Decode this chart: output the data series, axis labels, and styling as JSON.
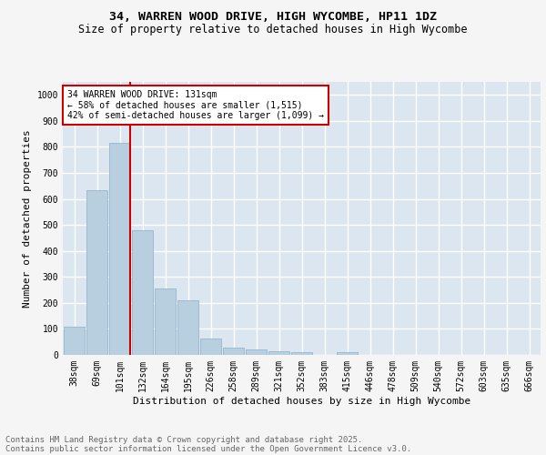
{
  "title": "34, WARREN WOOD DRIVE, HIGH WYCOMBE, HP11 1DZ",
  "subtitle": "Size of property relative to detached houses in High Wycombe",
  "xlabel": "Distribution of detached houses by size in High Wycombe",
  "ylabel": "Number of detached properties",
  "background_color": "#dce6f0",
  "bar_color": "#b8cfe0",
  "bar_edge_color": "#8aafc8",
  "grid_color": "#ffffff",
  "fig_background": "#f5f5f5",
  "categories": [
    "38sqm",
    "69sqm",
    "101sqm",
    "132sqm",
    "164sqm",
    "195sqm",
    "226sqm",
    "258sqm",
    "289sqm",
    "321sqm",
    "352sqm",
    "383sqm",
    "415sqm",
    "446sqm",
    "478sqm",
    "509sqm",
    "540sqm",
    "572sqm",
    "603sqm",
    "635sqm",
    "666sqm"
  ],
  "values": [
    110,
    635,
    815,
    480,
    255,
    210,
    63,
    27,
    20,
    15,
    11,
    0,
    10,
    0,
    0,
    0,
    0,
    0,
    0,
    0,
    0
  ],
  "ylim": [
    0,
    1050
  ],
  "yticks": [
    0,
    100,
    200,
    300,
    400,
    500,
    600,
    700,
    800,
    900,
    1000
  ],
  "vline_color": "#cc0000",
  "vline_x_index": 2,
  "annotation_text": "34 WARREN WOOD DRIVE: 131sqm\n← 58% of detached houses are smaller (1,515)\n42% of semi-detached houses are larger (1,099) →",
  "annotation_box_color": "#cc0000",
  "footer_line1": "Contains HM Land Registry data © Crown copyright and database right 2025.",
  "footer_line2": "Contains public sector information licensed under the Open Government Licence v3.0.",
  "title_fontsize": 9.5,
  "subtitle_fontsize": 8.5,
  "ylabel_fontsize": 8,
  "xlabel_fontsize": 8,
  "tick_fontsize": 7,
  "annotation_fontsize": 7,
  "footer_fontsize": 6.5
}
